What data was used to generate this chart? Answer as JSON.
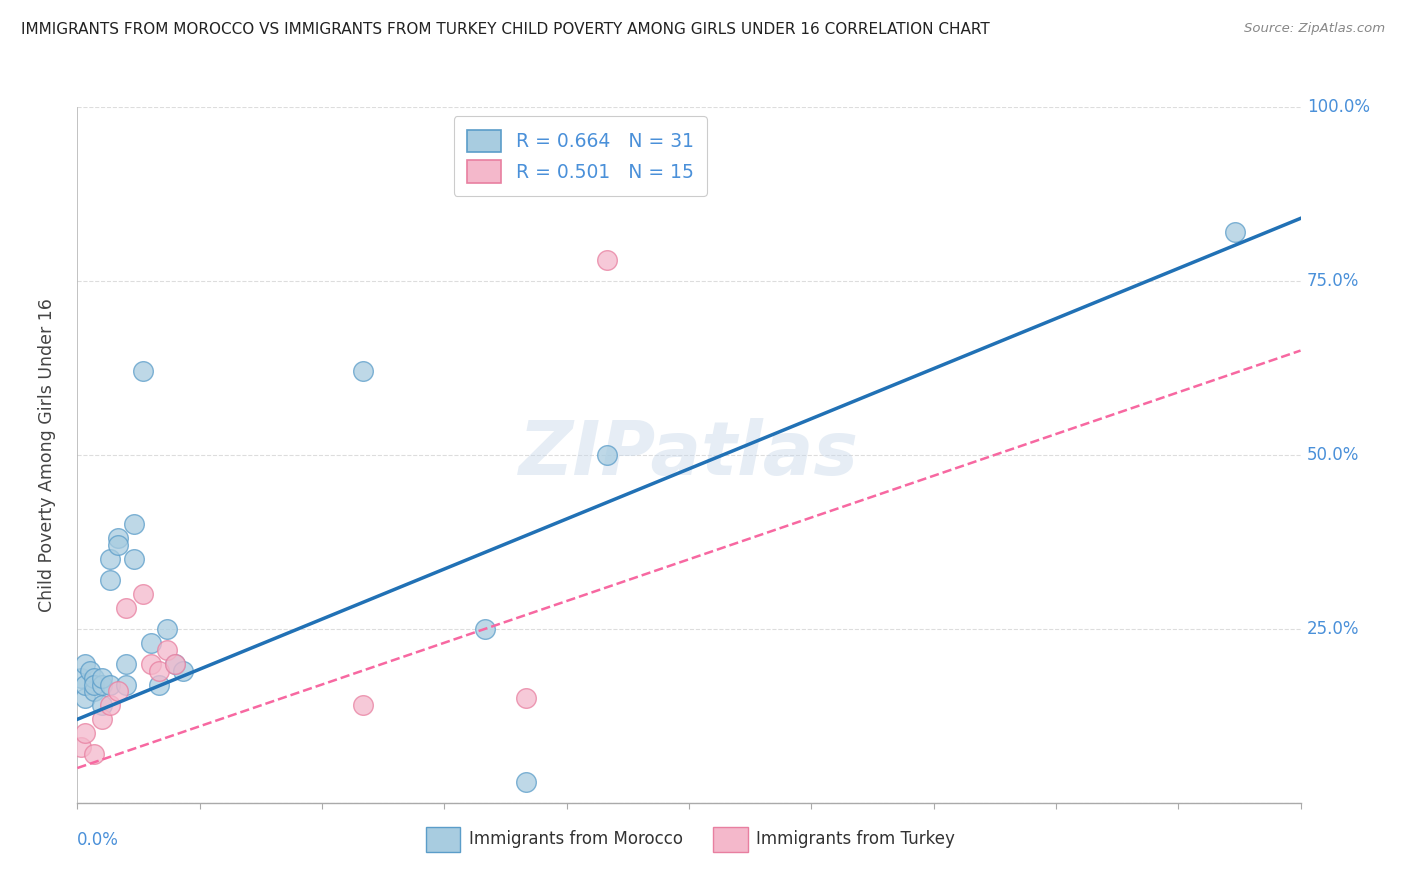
{
  "title": "IMMIGRANTS FROM MOROCCO VS IMMIGRANTS FROM TURKEY CHILD POVERTY AMONG GIRLS UNDER 16 CORRELATION CHART",
  "source": "Source: ZipAtlas.com",
  "ylabel": "Child Poverty Among Girls Under 16",
  "legend_morocco": "R = 0.664   N = 31",
  "legend_turkey": "R = 0.501   N = 15",
  "legend_bottom_morocco": "Immigrants from Morocco",
  "legend_bottom_turkey": "Immigrants from Turkey",
  "color_morocco_fill": "#a8cce0",
  "color_morocco_edge": "#5b9dc9",
  "color_turkey_fill": "#f4b8cb",
  "color_turkey_edge": "#e87fa0",
  "color_morocco_line": "#2171b5",
  "color_turkey_line": "#f768a1",
  "watermark": "ZIPatlas",
  "morocco_x": [
    0.0005,
    0.001,
    0.001,
    0.001,
    0.0015,
    0.002,
    0.002,
    0.002,
    0.003,
    0.003,
    0.003,
    0.004,
    0.004,
    0.004,
    0.005,
    0.005,
    0.006,
    0.006,
    0.007,
    0.007,
    0.008,
    0.009,
    0.01,
    0.011,
    0.012,
    0.013,
    0.035,
    0.05,
    0.055,
    0.065,
    0.142
  ],
  "morocco_y": [
    0.18,
    0.15,
    0.2,
    0.17,
    0.19,
    0.16,
    0.18,
    0.17,
    0.14,
    0.17,
    0.18,
    0.32,
    0.35,
    0.17,
    0.38,
    0.37,
    0.17,
    0.2,
    0.35,
    0.4,
    0.62,
    0.23,
    0.17,
    0.25,
    0.2,
    0.19,
    0.62,
    0.25,
    0.03,
    0.5,
    0.82
  ],
  "turkey_x": [
    0.0005,
    0.001,
    0.002,
    0.003,
    0.004,
    0.005,
    0.006,
    0.008,
    0.009,
    0.01,
    0.011,
    0.012,
    0.035,
    0.055,
    0.065
  ],
  "turkey_y": [
    0.08,
    0.1,
    0.07,
    0.12,
    0.14,
    0.16,
    0.28,
    0.3,
    0.2,
    0.19,
    0.22,
    0.2,
    0.14,
    0.15,
    0.78
  ],
  "xlim": [
    0.0,
    0.15
  ],
  "ylim": [
    0.0,
    1.0
  ],
  "background_color": "#ffffff",
  "title_color": "#222222",
  "source_color": "#888888",
  "axis_label_color": "#4a90d9",
  "grid_color": "#dddddd",
  "spine_color": "#aaaaaa",
  "morocco_line_intercept": 0.12,
  "morocco_line_slope": 4.8,
  "turkey_line_intercept": 0.05,
  "turkey_line_slope": 4.0
}
